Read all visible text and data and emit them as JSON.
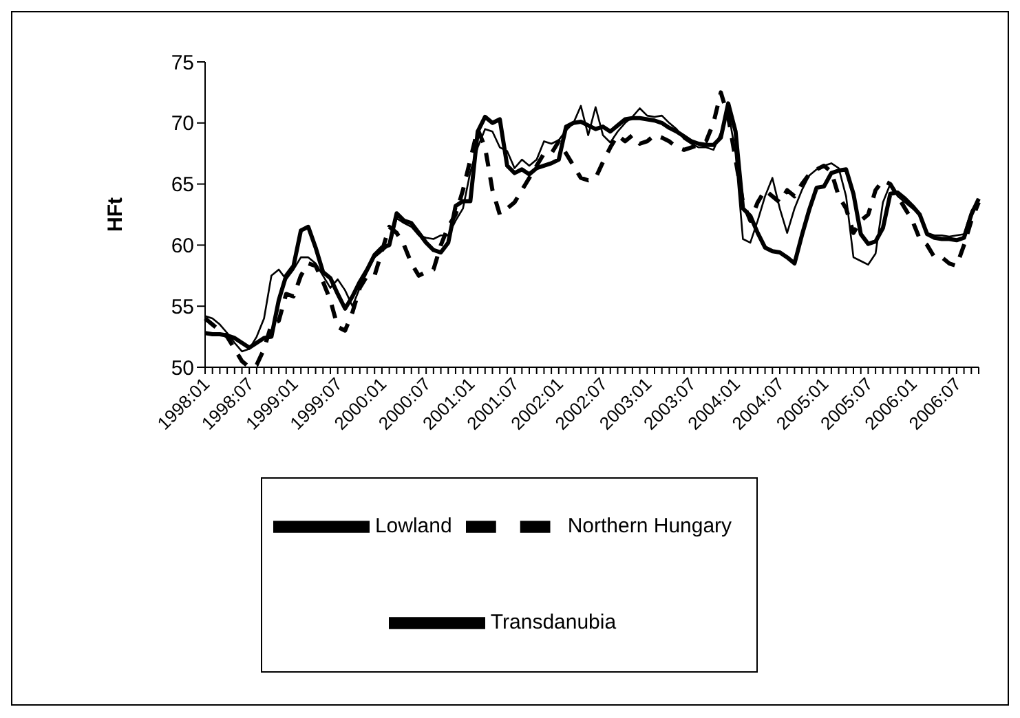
{
  "chart_data": {
    "type": "line",
    "ylabel": "HFt",
    "ylim": [
      50,
      75
    ],
    "yticks": [
      50,
      55,
      60,
      65,
      70,
      75
    ],
    "legend": "bottom",
    "marker": "none",
    "categories": [
      "1998:01",
      null,
      null,
      null,
      null,
      null,
      "1998:07",
      null,
      null,
      null,
      null,
      null,
      "1999:01",
      null,
      null,
      null,
      null,
      null,
      "1999:07",
      null,
      null,
      null,
      null,
      null,
      "2000:01",
      null,
      null,
      null,
      null,
      null,
      "2000:07",
      null,
      null,
      null,
      null,
      null,
      "2001:01",
      null,
      null,
      null,
      null,
      null,
      "2001:07",
      null,
      null,
      null,
      null,
      null,
      "2002:01",
      null,
      null,
      null,
      null,
      null,
      "2002:07",
      null,
      null,
      null,
      null,
      null,
      "2003:01",
      null,
      null,
      null,
      null,
      null,
      "2003:07",
      null,
      null,
      null,
      null,
      null,
      "2004:01",
      null,
      null,
      null,
      null,
      null,
      "2004:07",
      null,
      null,
      null,
      null,
      null,
      "2005:01",
      null,
      null,
      null,
      null,
      null,
      "2005:07",
      null,
      null,
      null,
      null,
      null,
      "2006:01",
      null,
      null,
      null,
      null,
      null,
      "2006:07",
      null,
      null,
      null
    ],
    "series": [
      {
        "name": "Lowland",
        "color": "#000000",
        "line_style": "solid",
        "values": [
          52.8,
          52.7,
          52.7,
          52.6,
          52.4,
          52.0,
          51.6,
          52.0,
          52.4,
          52.5,
          55.5,
          57.5,
          58.3,
          61.2,
          61.5,
          59.8,
          57.8,
          57.3,
          56.0,
          54.8,
          55.8,
          57.0,
          58.0,
          59.2,
          59.8,
          60.0,
          62.6,
          62.0,
          61.8,
          61.0,
          60.2,
          59.6,
          59.4,
          60.2,
          63.2,
          63.6,
          63.6,
          69.3,
          70.5,
          70.0,
          70.3,
          66.5,
          65.9,
          66.2,
          65.8,
          66.3,
          66.5,
          66.7,
          67.0,
          69.7,
          70.0,
          70.1,
          69.8,
          69.5,
          69.7,
          69.3,
          69.8,
          70.3,
          70.4,
          70.4,
          70.3,
          70.2,
          70.0,
          69.6,
          69.3,
          68.9,
          68.5,
          68.3,
          68.2,
          68.2,
          68.8,
          71.6,
          69.3,
          63.0,
          62.4,
          61.0,
          59.8,
          59.5,
          59.4,
          59.0,
          58.5,
          60.8,
          62.9,
          64.7,
          64.8,
          65.9,
          66.1,
          66.2,
          64.2,
          60.9,
          60.1,
          60.3,
          61.4,
          64.2,
          64.3,
          63.8,
          63.2,
          62.5,
          60.9,
          60.6,
          60.5,
          60.5,
          60.4,
          60.6,
          62.5,
          63.8
        ]
      },
      {
        "name": "Transdanubia",
        "color": "#000000",
        "line_style": "solid",
        "values": [
          54.2,
          54.0,
          53.5,
          52.8,
          52.0,
          51.3,
          51.5,
          52.5,
          54.0,
          57.5,
          58.0,
          57.2,
          58.0,
          59.0,
          59.0,
          58.5,
          57.5,
          56.5,
          57.2,
          56.3,
          55.0,
          56.5,
          57.8,
          59.0,
          59.5,
          60.0,
          62.2,
          61.8,
          61.5,
          60.8,
          60.6,
          60.5,
          60.8,
          60.8,
          62.0,
          63.0,
          66.0,
          68.0,
          69.5,
          69.3,
          68.0,
          67.7,
          66.3,
          67.0,
          66.5,
          67.0,
          68.5,
          68.3,
          68.6,
          69.4,
          70.0,
          71.4,
          69.0,
          71.3,
          69.0,
          68.4,
          69.3,
          70.0,
          70.5,
          71.2,
          70.6,
          70.5,
          70.6,
          70.0,
          69.5,
          68.7,
          68.3,
          68.0,
          68.0,
          67.8,
          69.2,
          71.0,
          67.5,
          60.5,
          60.2,
          62.0,
          64.0,
          65.5,
          63.0,
          61.0,
          63.0,
          64.5,
          65.7,
          66.2,
          66.5,
          66.7,
          66.3,
          64.0,
          59.0,
          58.7,
          58.4,
          59.3,
          63.5,
          65.0,
          64.0,
          63.5,
          63.0,
          62.5,
          61.0,
          60.8,
          60.8,
          60.7,
          60.8,
          60.9,
          62.8,
          63.8
        ]
      },
      {
        "name": "Northern Hungary",
        "color": "#000000",
        "line_style": "dashed",
        "values": [
          54.0,
          53.5,
          53.0,
          52.5,
          51.5,
          50.5,
          50.0,
          50.2,
          51.5,
          53.5,
          53.8,
          56.0,
          55.8,
          57.5,
          58.5,
          58.3,
          57.0,
          55.5,
          53.3,
          53.0,
          54.5,
          56.5,
          57.5,
          57.5,
          59.5,
          61.5,
          61.0,
          60.0,
          58.5,
          57.5,
          57.8,
          58.0,
          60.0,
          61.5,
          62.5,
          64.5,
          67.0,
          69.5,
          68.0,
          64.5,
          62.5,
          63.0,
          63.5,
          64.5,
          65.5,
          66.5,
          67.5,
          67.5,
          68.5,
          67.5,
          66.5,
          65.5,
          65.3,
          65.5,
          66.8,
          68.0,
          69.0,
          68.5,
          69.0,
          68.3,
          68.5,
          69.0,
          68.8,
          68.5,
          68.0,
          67.8,
          68.0,
          68.2,
          68.5,
          70.0,
          72.5,
          70.5,
          67.0,
          63.5,
          62.0,
          63.5,
          64.5,
          64.0,
          63.5,
          64.5,
          64.0,
          65.0,
          65.8,
          66.2,
          66.5,
          66.0,
          64.0,
          63.0,
          61.0,
          62.0,
          62.5,
          64.5,
          65.3,
          65.0,
          64.0,
          63.0,
          62.0,
          60.5,
          60.0,
          59.0,
          59.0,
          58.5,
          58.3,
          60.0,
          62.0,
          63.5
        ]
      }
    ]
  }
}
